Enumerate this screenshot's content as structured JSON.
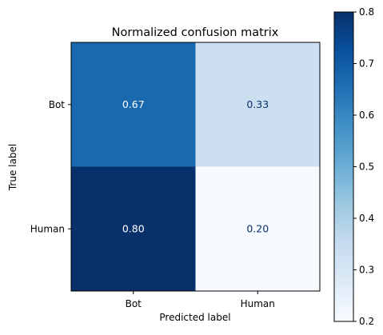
{
  "chart_data": {
    "type": "heatmap",
    "title": "Normalized confusion matrix",
    "xlabel": "Predicted label",
    "ylabel": "True label",
    "x_categories": [
      "Bot",
      "Human"
    ],
    "y_categories": [
      "Bot",
      "Human"
    ],
    "values": [
      [
        0.67,
        0.33
      ],
      [
        0.8,
        0.2
      ]
    ],
    "value_labels": [
      [
        "0.67",
        "0.33"
      ],
      [
        "0.80",
        "0.20"
      ]
    ],
    "colormap": "Blues",
    "colorbar": {
      "range": [
        0.2,
        0.8
      ],
      "ticks": [
        0.2,
        0.3,
        0.4,
        0.5,
        0.6,
        0.7,
        0.8
      ],
      "tick_labels": [
        "0.2",
        "0.3",
        "0.4",
        "0.5",
        "0.6",
        "0.7",
        "0.8"
      ]
    }
  }
}
